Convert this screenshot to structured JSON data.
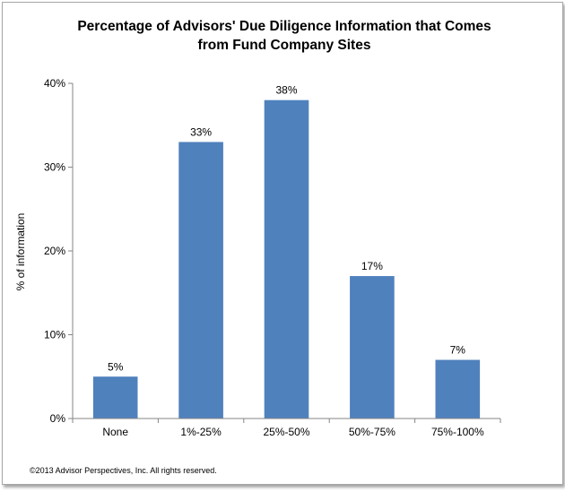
{
  "chart_data": {
    "type": "bar",
    "title": "Percentage of Advisors' Due Diligence Information that Comes from Fund Company Sites",
    "title_lines": [
      "Percentage of Advisors' Due Diligence Information that Comes",
      "from Fund Company Sites"
    ],
    "xlabel": "",
    "ylabel": "% of information",
    "categories": [
      "None",
      "1%-25%",
      "25%-50%",
      "50%-75%",
      "75%-100%"
    ],
    "values": [
      5,
      33,
      38,
      17,
      7
    ],
    "data_labels": [
      "5%",
      "33%",
      "38%",
      "17%",
      "7%"
    ],
    "ylim": [
      0,
      40
    ],
    "yticks": [
      0,
      10,
      20,
      30,
      40
    ],
    "ytick_labels": [
      "0%",
      "10%",
      "20%",
      "30%",
      "40%"
    ],
    "grid": false,
    "legend": "none",
    "bar_color": "#4f81bd"
  },
  "footer": {
    "copyright": "©2013 Advisor Perspectives, Inc. All rights reserved."
  }
}
